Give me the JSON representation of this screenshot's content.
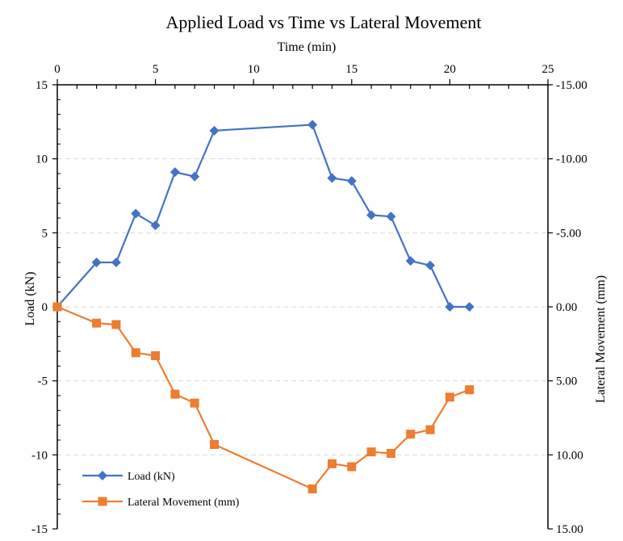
{
  "chart_data": {
    "type": "line",
    "title": "Applied Load vs Time vs Lateral Movement",
    "xlabel": "Time (min)",
    "ylabel": "Load (kN)",
    "y2label": "Lateral Movement (mm)",
    "xlim": [
      0,
      25
    ],
    "ylim": [
      -15,
      15
    ],
    "y2lim": [
      -15,
      15
    ],
    "y2_reversed": true,
    "x_ticks": [
      "0",
      "5",
      "10",
      "15",
      "20",
      "25"
    ],
    "y_ticks": [
      "15",
      "10",
      "5",
      "0",
      "-5",
      "-10",
      "-15"
    ],
    "y2_ticks": [
      "-15.00",
      "-10.00",
      "-5.00",
      "0.00",
      "5.00",
      "10.00",
      "15.00"
    ],
    "grid": "horizontal dashed",
    "legend_position": "bottom-left",
    "series": [
      {
        "name": "Load (kN)",
        "axis": "left",
        "marker": "diamond",
        "color": "#4472C4",
        "x": [
          0,
          2,
          3,
          4,
          5,
          6,
          7,
          8,
          13,
          14,
          15,
          16,
          17,
          18,
          19,
          20,
          21
        ],
        "values": [
          0,
          3.0,
          3.0,
          6.3,
          5.5,
          9.1,
          8.8,
          11.9,
          12.3,
          8.7,
          8.5,
          6.2,
          6.1,
          3.1,
          2.8,
          0,
          0
        ]
      },
      {
        "name": "Lateral Movement (mm)",
        "axis": "right",
        "marker": "square",
        "color": "#ED7D31",
        "x": [
          0,
          2,
          3,
          4,
          5,
          6,
          7,
          8,
          13,
          14,
          15,
          16,
          17,
          18,
          19,
          20,
          21
        ],
        "values": [
          0,
          1.1,
          1.2,
          3.1,
          3.3,
          5.9,
          6.5,
          9.3,
          12.3,
          10.6,
          10.8,
          9.8,
          9.9,
          8.6,
          8.3,
          6.1,
          5.6
        ]
      }
    ]
  }
}
